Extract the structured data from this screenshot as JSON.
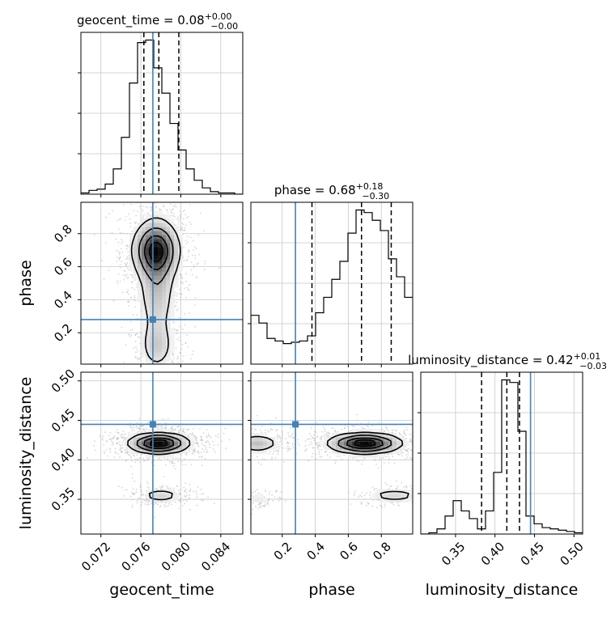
{
  "params": [
    "geocent_time",
    "phase",
    "luminosity_distance"
  ],
  "colors": {
    "truth": "#4682b4",
    "hist": "#000000",
    "grid": "#c8c8c8",
    "scatter": "#bbbbbb"
  },
  "chart_data": {
    "type": "corner",
    "grid": true,
    "truths": {
      "geocent_time": 0.0772,
      "phase": 0.28,
      "luminosity_distance": 0.445
    },
    "axes": {
      "geocent_time": {
        "label": "geocent_time",
        "range": [
          0.07,
          0.0862
        ],
        "ticks": [
          0.072,
          0.076,
          0.08,
          0.084
        ],
        "tick_labels": [
          "0.072",
          "0.076",
          "0.080",
          "0.084"
        ]
      },
      "phase": {
        "label": "phase",
        "range": [
          0.01,
          0.99
        ],
        "ticks": [
          0.2,
          0.4,
          0.6,
          0.8
        ],
        "tick_labels": [
          "0.2",
          "0.4",
          "0.6",
          "0.8"
        ]
      },
      "luminosity_distance": {
        "label": "luminosity_distance",
        "range": [
          0.306,
          0.511
        ],
        "ticks": [
          0.35,
          0.4,
          0.45,
          0.5
        ],
        "tick_labels": [
          "0.35",
          "0.40",
          "0.45",
          "0.50"
        ]
      }
    },
    "diagonal": [
      {
        "param": "geocent_time",
        "title_name": "geocent_time",
        "title_value": "0.08",
        "title_plus": "+0.00",
        "title_minus": "−0.00",
        "quantiles": [
          0.0763,
          0.0778,
          0.0798
        ],
        "bins": {
          "edges_start": 0.07,
          "width": 0.00081,
          "counts": [
            1,
            3,
            4,
            8,
            20,
            45,
            88,
            120,
            122,
            100,
            80,
            56,
            35,
            20,
            11,
            5,
            2,
            1,
            1,
            0
          ]
        }
      },
      {
        "param": "phase",
        "title_name": "phase",
        "title_value": "0.68",
        "title_plus": "+0.18",
        "title_minus": "−0.30",
        "quantiles": [
          0.38,
          0.68,
          0.86
        ],
        "bins": {
          "edges_start": 0.01,
          "width": 0.049,
          "counts": [
            38,
            32,
            20,
            18,
            16,
            17,
            18,
            22,
            40,
            52,
            66,
            80,
            102,
            120,
            118,
            112,
            104,
            82,
            68,
            52
          ]
        }
      },
      {
        "param": "luminosity_distance",
        "title_name": "luminosity_distance",
        "title_value": "0.42",
        "title_plus": "+0.01",
        "title_minus": "−0.03",
        "quantiles": [
          0.383,
          0.415,
          0.431
        ],
        "bins": {
          "edges_start": 0.306,
          "width": 0.01025,
          "counts": [
            0,
            1,
            4,
            14,
            26,
            18,
            12,
            4,
            18,
            48,
            120,
            118,
            80,
            14,
            8,
            5,
            4,
            3,
            2,
            1
          ]
        }
      }
    ],
    "pairs": [
      {
        "x": "geocent_time",
        "y": "phase",
        "density": [
          {
            "x": 0.0775,
            "y": 0.7,
            "sx": 0.0012,
            "sy": 0.09,
            "w": 1.0
          },
          {
            "x": 0.0776,
            "y": 0.5,
            "sx": 0.001,
            "sy": 0.2,
            "w": 0.35
          },
          {
            "x": 0.0776,
            "y": 0.12,
            "sx": 0.0009,
            "sy": 0.08,
            "w": 0.25
          }
        ]
      },
      {
        "x": "geocent_time",
        "y": "luminosity_distance",
        "density": [
          {
            "x": 0.0778,
            "y": 0.421,
            "sx": 0.0015,
            "sy": 0.0065,
            "w": 1.0
          },
          {
            "x": 0.078,
            "y": 0.355,
            "sx": 0.0011,
            "sy": 0.0045,
            "w": 0.22
          }
        ]
      },
      {
        "x": "phase",
        "y": "luminosity_distance",
        "density": [
          {
            "x": 0.7,
            "y": 0.421,
            "sx": 0.11,
            "sy": 0.0065,
            "w": 1.0
          },
          {
            "x": 0.05,
            "y": 0.421,
            "sx": 0.07,
            "sy": 0.006,
            "w": 0.3
          },
          {
            "x": 0.88,
            "y": 0.355,
            "sx": 0.09,
            "sy": 0.0045,
            "w": 0.2
          },
          {
            "x": 0.05,
            "y": 0.35,
            "sx": 0.05,
            "sy": 0.004,
            "w": 0.12
          }
        ]
      }
    ]
  }
}
